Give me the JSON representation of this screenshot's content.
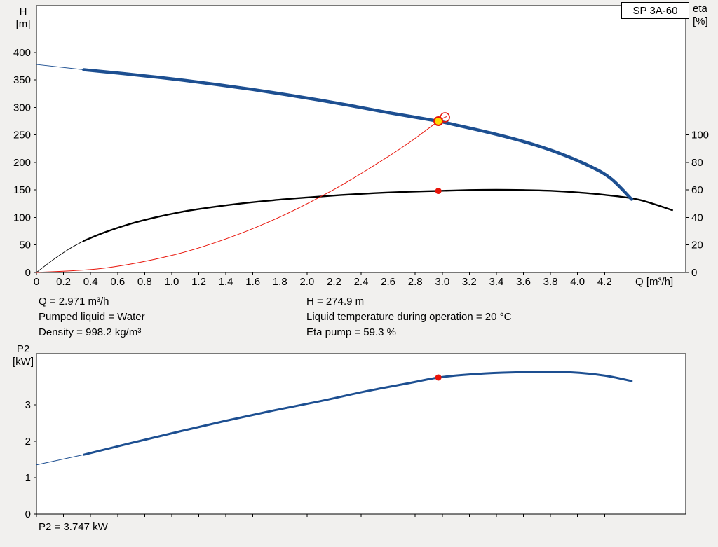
{
  "pump": {
    "label": "SP 3A-60"
  },
  "readouts": {
    "col1": [
      "Q = 2.971 m³/h",
      "Pumped liquid = Water",
      "Density = 998.2 kg/m³"
    ],
    "col2": [
      "H = 274.9 m",
      "Liquid temperature during operation = 20 °C",
      "Eta pump = 59.3 %"
    ],
    "p2": "P2 = 3.747 kW"
  },
  "colors": {
    "curve_blue": "#1d4f91",
    "curve_black": "#000000",
    "curve_red": "#e81309",
    "marker_yellow": "#ffd800",
    "background": "#f1f0ee",
    "plot_background": "#ffffff"
  },
  "chart_data": [
    {
      "type": "line",
      "title": "SP 3A-60",
      "xlabel": "Q [m³/h]",
      "ylabel_left": "H [m]",
      "ylabel_left_lines": [
        "H",
        "[m]"
      ],
      "ylabel_right": "eta [%]",
      "ylabel_right_lines": [
        "eta",
        "[%]"
      ],
      "xlim": [
        0,
        4.8
      ],
      "ylim_left": [
        0,
        485
      ],
      "ylim_right": [
        0,
        194
      ],
      "grid": false,
      "legend": false,
      "x_ticks": {
        "values": [
          0,
          0.2,
          0.4,
          0.6,
          0.8,
          1.0,
          1.2,
          1.4,
          1.6,
          1.8,
          2.0,
          2.2,
          2.4,
          2.6,
          2.8,
          3.0,
          3.2,
          3.4,
          3.6,
          3.8,
          4.0,
          4.2
        ],
        "labels": [
          "0",
          "0.2",
          "0.4",
          "0.6",
          "0.8",
          "1.0",
          "1.2",
          "1.4",
          "1.6",
          "1.8",
          "2.0",
          "2.2",
          "2.4",
          "2.6",
          "2.8",
          "3.0",
          "3.2",
          "3.4",
          "3.6",
          "3.8",
          "4.0",
          "4.2"
        ]
      },
      "y_ticks_left": {
        "values": [
          0,
          50,
          100,
          150,
          200,
          250,
          300,
          350,
          400
        ],
        "labels": [
          "0",
          "50",
          "100",
          "150",
          "200",
          "250",
          "300",
          "350",
          "400"
        ]
      },
      "y_ticks_right": {
        "values": [
          0,
          20,
          40,
          60,
          80,
          100
        ],
        "labels": [
          "0",
          "20",
          "40",
          "60",
          "80",
          "100"
        ]
      },
      "series": [
        {
          "name": "efficiency-curve-extension",
          "axis": "right",
          "color": "#000000",
          "width": 0.9,
          "points": [
            [
              0,
              0
            ],
            [
              0.12,
              9
            ],
            [
              0.24,
              17
            ],
            [
              0.35,
              23
            ]
          ]
        },
        {
          "name": "efficiency-curve",
          "axis": "right",
          "color": "#000000",
          "width": 2.4,
          "points": [
            [
              0.35,
              23
            ],
            [
              0.5,
              29
            ],
            [
              0.7,
              35.5
            ],
            [
              0.9,
              40.5
            ],
            [
              1.1,
              44.5
            ],
            [
              1.3,
              47.5
            ],
            [
              1.5,
              50
            ],
            [
              1.75,
              52.5
            ],
            [
              2.0,
              54.5
            ],
            [
              2.25,
              56.3
            ],
            [
              2.5,
              57.7
            ],
            [
              2.75,
              58.7
            ],
            [
              2.971,
              59.3
            ],
            [
              3.2,
              59.9
            ],
            [
              3.4,
              60.1
            ],
            [
              3.6,
              59.9
            ],
            [
              3.8,
              59.4
            ],
            [
              4.0,
              58.2
            ],
            [
              4.2,
              56.4
            ],
            [
              4.45,
              53
            ],
            [
              4.7,
              45.3
            ]
          ]
        },
        {
          "name": "system-curve",
          "axis": "left",
          "color": "#e81309",
          "width": 1,
          "points": [
            [
              0,
              0
            ],
            [
              0.5,
              7.8
            ],
            [
              1.0,
              31
            ],
            [
              1.4,
              61
            ],
            [
              1.8,
              101
            ],
            [
              2.2,
              151
            ],
            [
              2.5,
              195
            ],
            [
              2.75,
              235
            ],
            [
              2.971,
              274.9
            ],
            [
              3.03,
              283
            ]
          ]
        },
        {
          "name": "head-curve-extension",
          "axis": "left",
          "color": "#1d4f91",
          "width": 1,
          "points": [
            [
              0,
              378
            ],
            [
              0.35,
              368.5
            ]
          ]
        },
        {
          "name": "head-curve",
          "axis": "left",
          "color": "#1d4f91",
          "width": 4.5,
          "points": [
            [
              0.35,
              368.5
            ],
            [
              0.6,
              362.5
            ],
            [
              0.85,
              356
            ],
            [
              1.1,
              349
            ],
            [
              1.35,
              341
            ],
            [
              1.6,
              332.5
            ],
            [
              1.85,
              323
            ],
            [
              2.1,
              313
            ],
            [
              2.35,
              302
            ],
            [
              2.6,
              290.5
            ],
            [
              2.971,
              274.9
            ],
            [
              3.1,
              268
            ],
            [
              3.35,
              254
            ],
            [
              3.6,
              238
            ],
            [
              3.85,
              218
            ],
            [
              4.1,
              192
            ],
            [
              4.25,
              170
            ],
            [
              4.4,
              133
            ]
          ]
        }
      ],
      "markers": [
        {
          "name": "duty-point-outline",
          "axis": "left",
          "q": 3.02,
          "v": 282,
          "r": 6.5,
          "fill": "none",
          "stroke": "#e81309",
          "stroke_width": 1.5,
          "interactable": false
        },
        {
          "name": "duty-point-marker",
          "axis": "left",
          "q": 2.971,
          "v": 274.9,
          "r": 6,
          "fill": "#ffd800",
          "stroke": "#e81309",
          "stroke_width": 2,
          "interactable": true
        },
        {
          "name": "eta-point-marker",
          "axis": "right",
          "q": 2.971,
          "v": 59.3,
          "r": 4.5,
          "fill": "#e81309",
          "stroke": "none",
          "stroke_width": 0,
          "interactable": false
        }
      ]
    },
    {
      "type": "line",
      "title": "",
      "xlabel": "",
      "ylabel_left": "P2 [kW]",
      "ylabel_left_lines": [
        "P2",
        "[kW]"
      ],
      "xlim": [
        0,
        4.8
      ],
      "ylim_left": [
        0,
        4.4
      ],
      "grid": false,
      "legend": false,
      "x_ticks": {
        "values": [
          0,
          0.2,
          0.4,
          0.6,
          0.8,
          1.0,
          1.2,
          1.4,
          1.6,
          1.8,
          2.0,
          2.2,
          2.4,
          2.6,
          2.8,
          3.0,
          3.2,
          3.4,
          3.6,
          3.8,
          4.0,
          4.2
        ],
        "labels": null
      },
      "y_ticks_left": {
        "values": [
          0,
          1,
          2,
          3
        ],
        "labels": [
          "0",
          "1",
          "2",
          "3"
        ]
      },
      "series": [
        {
          "name": "p2-curve-extension",
          "axis": "left",
          "color": "#1d4f91",
          "width": 1,
          "points": [
            [
              0,
              1.35
            ],
            [
              0.35,
              1.63
            ]
          ]
        },
        {
          "name": "p2-curve",
          "axis": "left",
          "color": "#1d4f91",
          "width": 3,
          "points": [
            [
              0.35,
              1.63
            ],
            [
              0.7,
              1.95
            ],
            [
              1.05,
              2.26
            ],
            [
              1.4,
              2.56
            ],
            [
              1.75,
              2.84
            ],
            [
              2.1,
              3.1
            ],
            [
              2.45,
              3.38
            ],
            [
              2.75,
              3.59
            ],
            [
              2.971,
              3.747
            ],
            [
              3.2,
              3.83
            ],
            [
              3.45,
              3.88
            ],
            [
              3.7,
              3.9
            ],
            [
              3.95,
              3.89
            ],
            [
              4.2,
              3.8
            ],
            [
              4.4,
              3.65
            ]
          ]
        }
      ],
      "markers": [
        {
          "name": "p2-point-marker",
          "axis": "left",
          "q": 2.971,
          "v": 3.747,
          "r": 4.5,
          "fill": "#e81309",
          "stroke": "none",
          "stroke_width": 0,
          "interactable": false
        }
      ]
    }
  ]
}
